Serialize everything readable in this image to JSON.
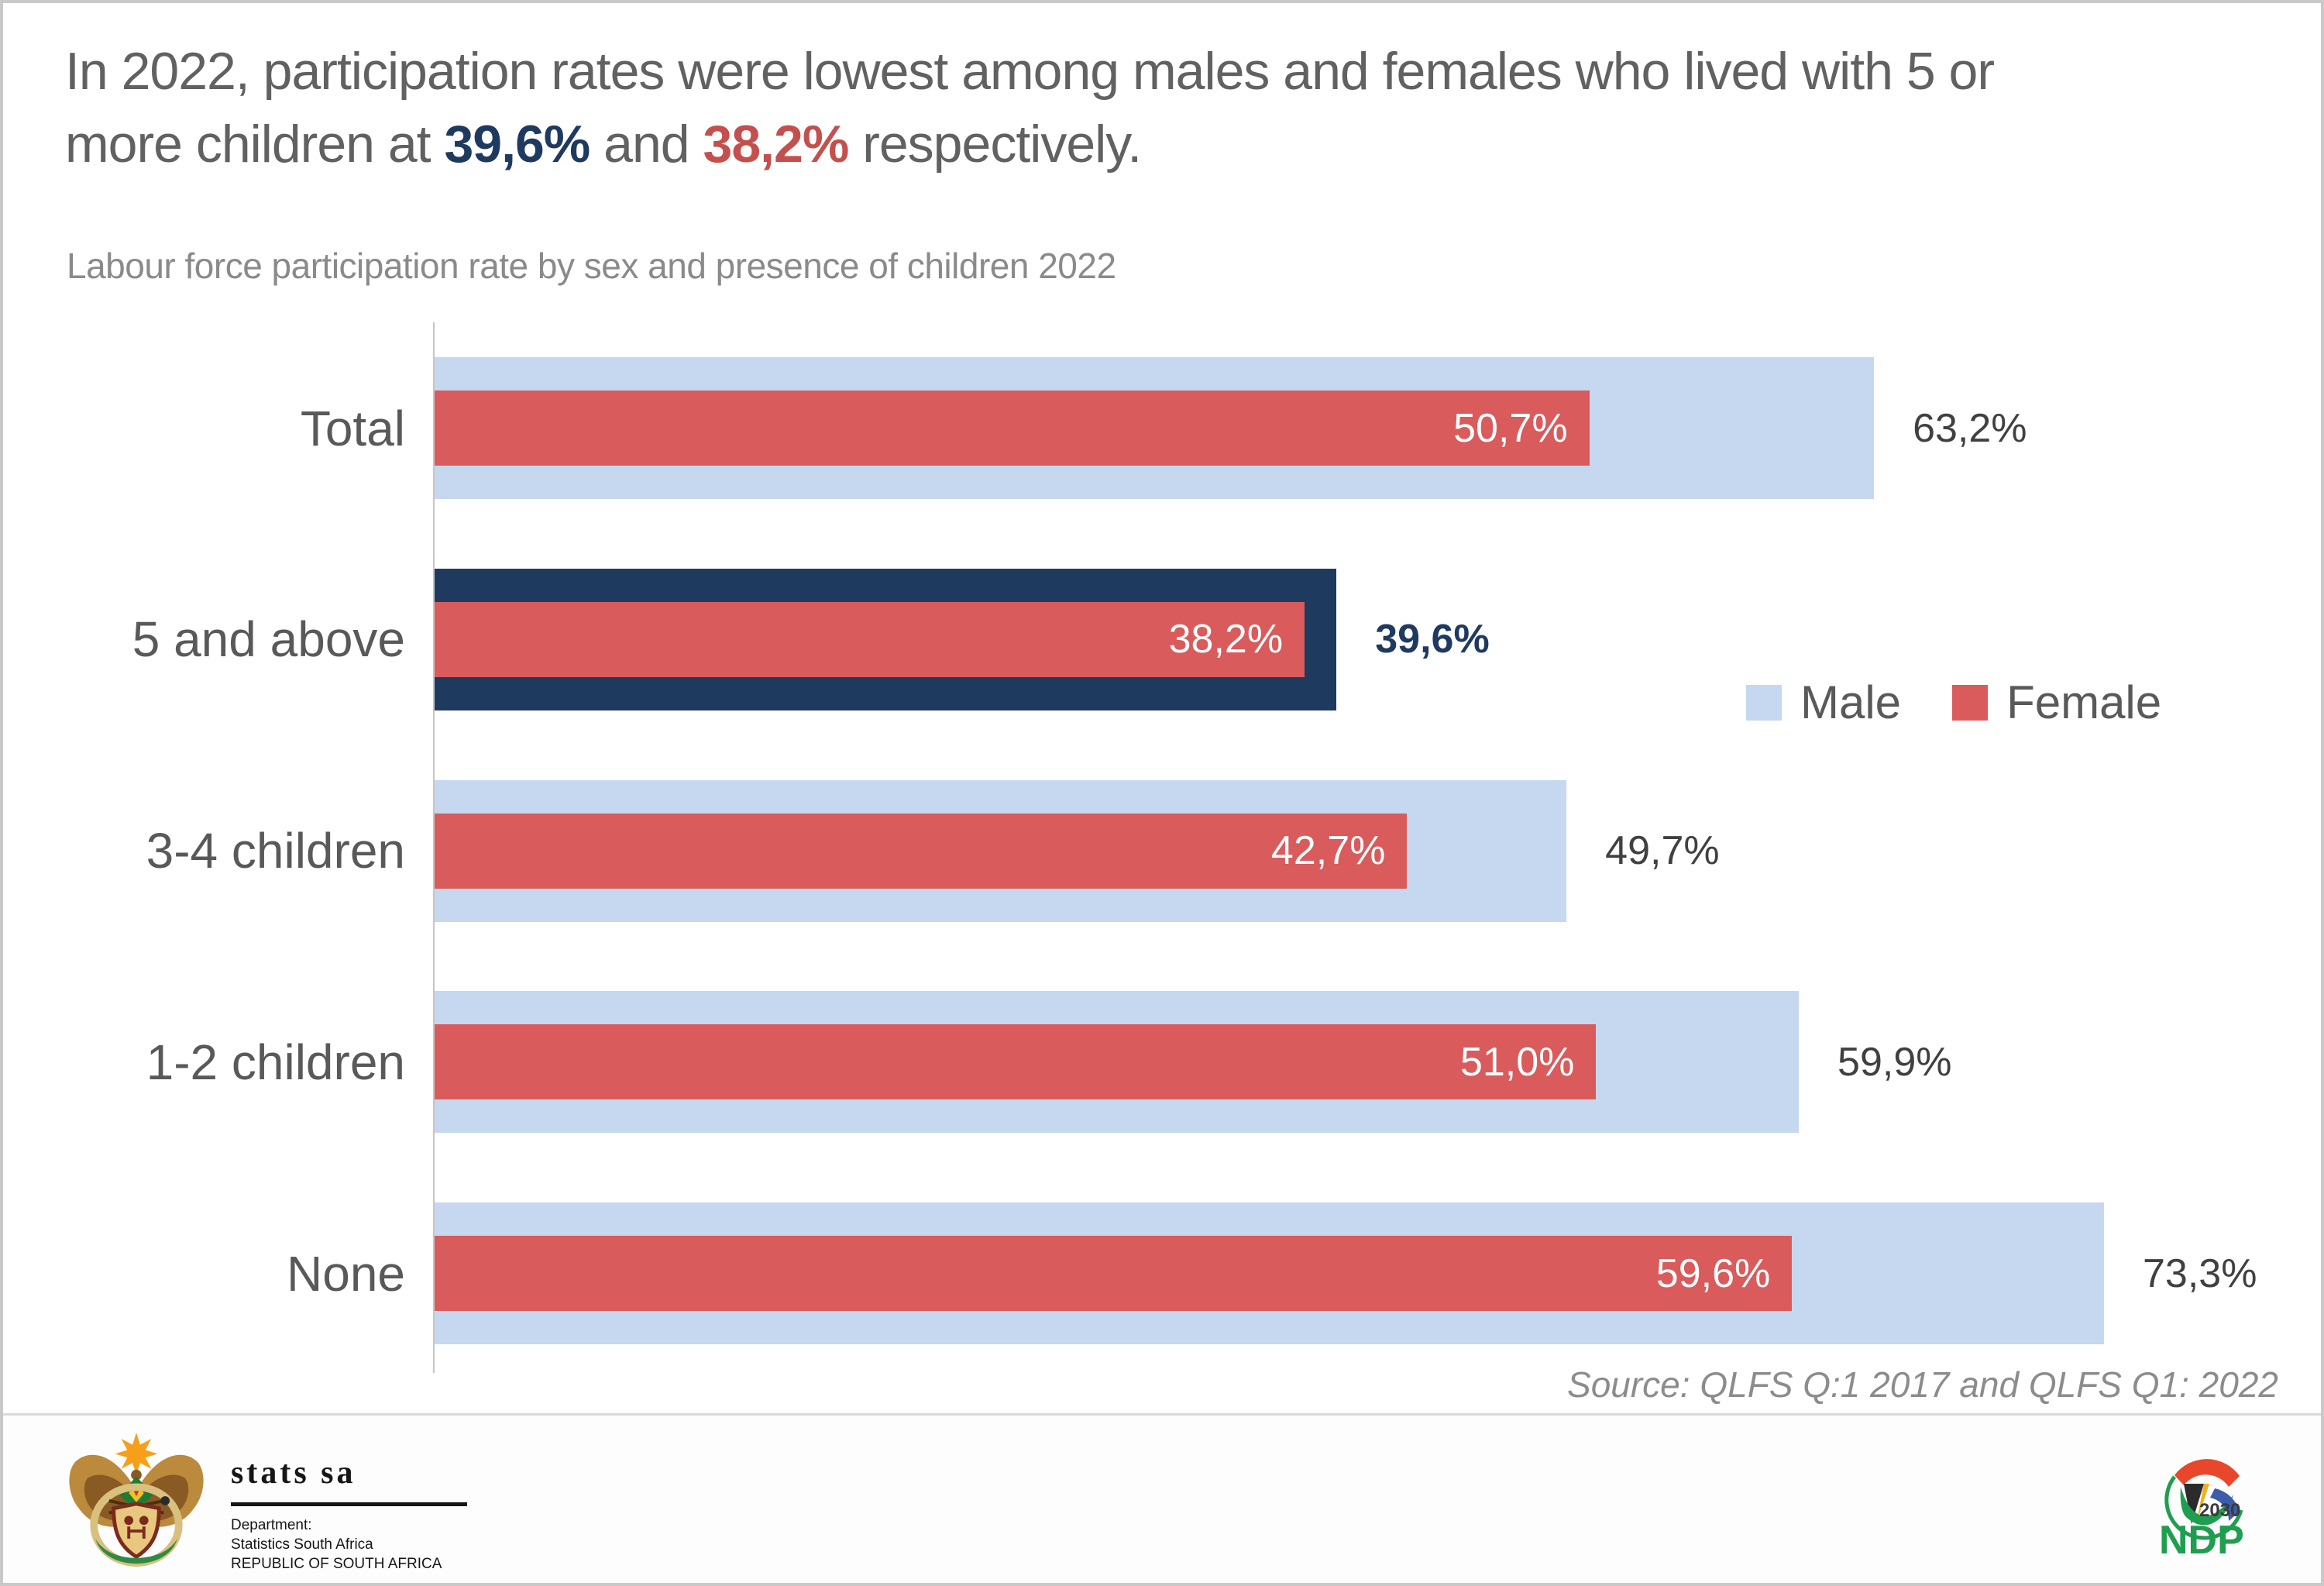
{
  "header": {
    "title": {
      "line1": "In 2022, participation rates were lowest among males and females who lived with 5 or",
      "line2_pre": "more children at ",
      "male_value": "39,6%",
      "mid": " and ",
      "female_value": "38,2%",
      "line2_post": " respectively."
    },
    "subtitle": "Labour force participation rate by sex and presence of children 2022"
  },
  "chart_data": {
    "type": "bar",
    "orientation": "horizontal",
    "title": "Labour force participation rate by sex and presence of children 2022",
    "categories": [
      "Total",
      "5 and above",
      "3-4 children",
      "1-2 children",
      "None"
    ],
    "series": [
      {
        "name": "Male",
        "color": "#c5d8ef",
        "values": [
          63.2,
          39.6,
          49.7,
          59.9,
          73.3
        ],
        "labels": [
          "63,2%",
          "39,6%",
          "49,7%",
          "59,9%",
          "73,3%"
        ]
      },
      {
        "name": "Female",
        "color": "#d95b5c",
        "values": [
          50.7,
          38.2,
          42.7,
          51.0,
          59.6
        ],
        "labels": [
          "50,7%",
          "38,2%",
          "42,7%",
          "51,0%",
          "59,6%"
        ]
      }
    ],
    "highlight_category": "5 and above",
    "highlight_color": "#1f3a5f",
    "xlim": [
      0,
      80
    ],
    "grid": false,
    "legend_position": "middle-right"
  },
  "legend": {
    "items": [
      {
        "label": "Male",
        "color": "#c5d8ef"
      },
      {
        "label": "Female",
        "color": "#d95b5c"
      }
    ]
  },
  "source": "Source: QLFS Q:1 2017 and QLFS Q1: 2022",
  "footer": {
    "statssa": {
      "brand": "stats sa",
      "dept_line1": "Department:",
      "dept_line2": "Statistics South Africa",
      "dept_line3": "REPUBLIC OF SOUTH AFRICA"
    },
    "ndp": {
      "year": "2030",
      "brand": "NDP"
    }
  },
  "colors": {
    "male_bar": "#c5d8ef",
    "female_bar": "#d95b5c",
    "highlight_navy": "#1f3a5f",
    "title_red": "#c4504e",
    "text_gray": "#595959"
  }
}
